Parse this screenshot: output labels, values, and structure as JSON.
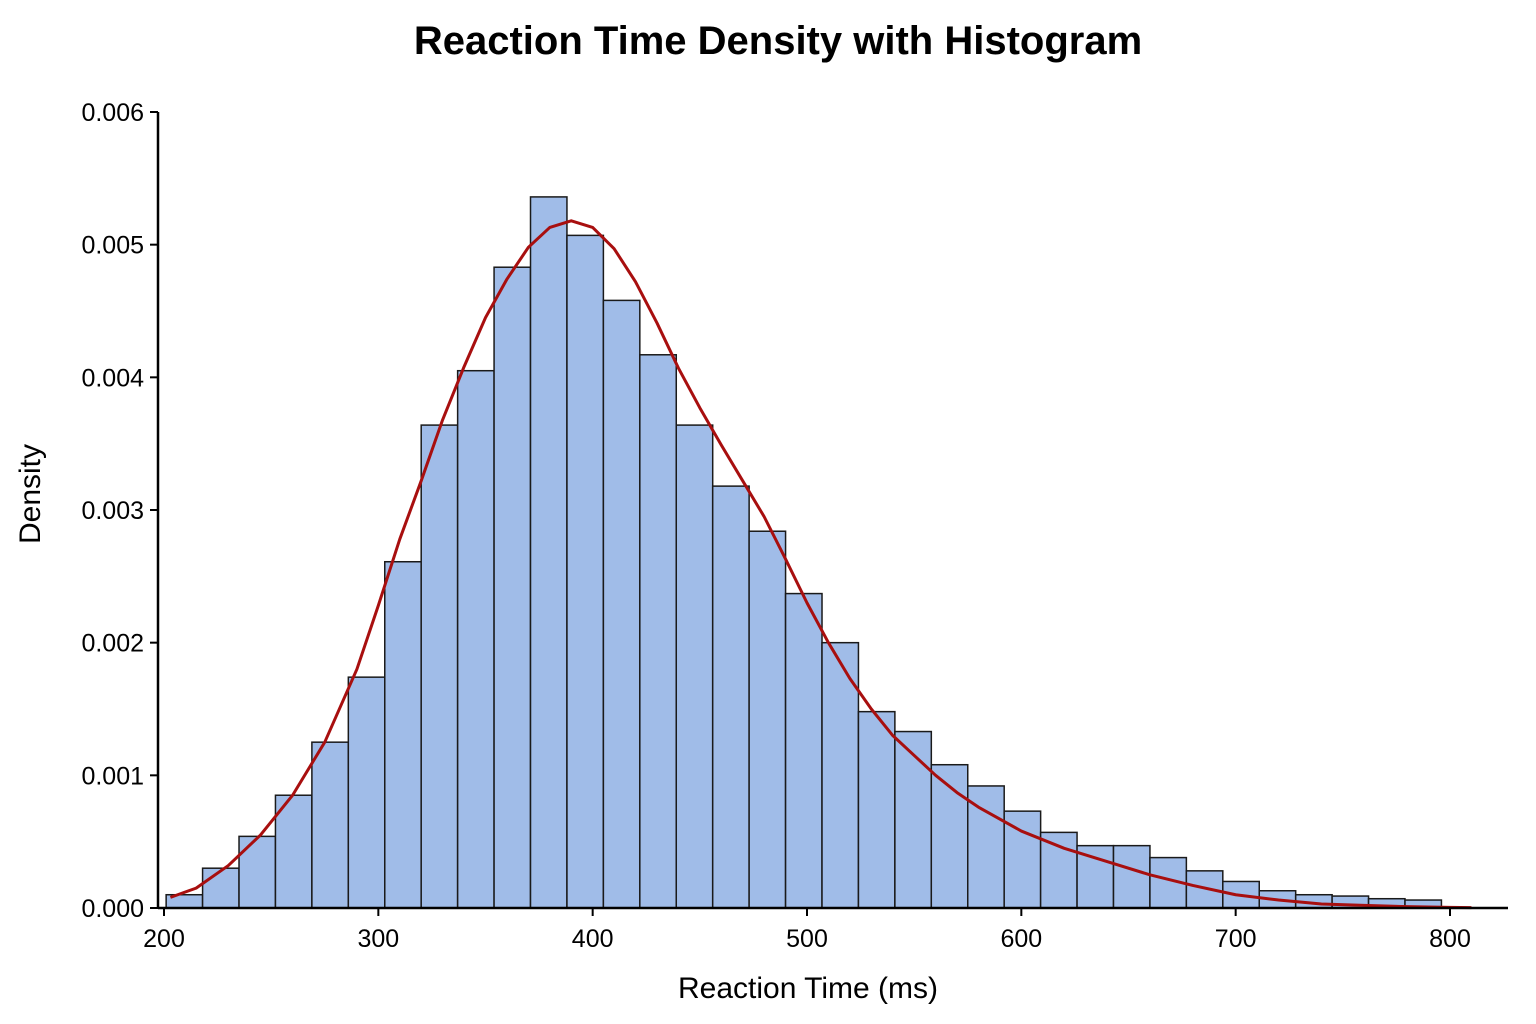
{
  "chart_data": {
    "type": "histogram",
    "title": "Reaction Time Density with Histogram",
    "xlabel": "Reaction Time (ms)",
    "ylabel": "Density",
    "xlim": [
      200,
      810
    ],
    "ylim": [
      0,
      0.006
    ],
    "xticks": [
      200,
      300,
      400,
      500,
      600,
      700,
      800
    ],
    "yticks": [
      0.0,
      0.001,
      0.002,
      0.003,
      0.004,
      0.005,
      0.006
    ],
    "ytick_labels": [
      "0.000",
      "0.001",
      "0.002",
      "0.003",
      "0.004",
      "0.005",
      "0.006"
    ],
    "grid": false,
    "legend": false,
    "colors": {
      "bar_fill": "#a0bce8",
      "bar_edge": "#1a1a1a",
      "density_line": "#a80f0f"
    },
    "histogram": {
      "bin_width": 17,
      "bin_edges": [
        201,
        218,
        235,
        252,
        269,
        286,
        303,
        320,
        337,
        354,
        371,
        388,
        405,
        422,
        439,
        456,
        473,
        490,
        507,
        524,
        541,
        558,
        575,
        592,
        609,
        626,
        643,
        660,
        677,
        694,
        711,
        728,
        745,
        762,
        779,
        796
      ],
      "densities": [
        0.0001,
        0.0003,
        0.00054,
        0.00085,
        0.00125,
        0.00174,
        0.00261,
        0.00364,
        0.00405,
        0.00483,
        0.00536,
        0.00507,
        0.00458,
        0.00417,
        0.00364,
        0.00318,
        0.00284,
        0.00237,
        0.002,
        0.00148,
        0.00133,
        0.00108,
        0.00092,
        0.00073,
        0.00057,
        0.00047,
        0.00047,
        0.00038,
        0.00028,
        0.0002,
        0.00013,
        0.0001,
        9e-05,
        7e-05,
        6e-05
      ]
    },
    "density_curve": {
      "name": "",
      "x": [
        203,
        215,
        230,
        245,
        260,
        275,
        290,
        300,
        310,
        320,
        330,
        340,
        350,
        360,
        370,
        380,
        390,
        400,
        410,
        420,
        430,
        440,
        450,
        460,
        470,
        480,
        490,
        500,
        510,
        520,
        530,
        540,
        550,
        560,
        570,
        580,
        600,
        620,
        640,
        660,
        680,
        700,
        720,
        740,
        760,
        780,
        800,
        810
      ],
      "y": [
        8e-05,
        0.00015,
        0.00032,
        0.00055,
        0.00085,
        0.00125,
        0.0018,
        0.00228,
        0.00278,
        0.00322,
        0.00368,
        0.00408,
        0.00445,
        0.00474,
        0.00498,
        0.00513,
        0.00518,
        0.00513,
        0.00497,
        0.00472,
        0.00441,
        0.00407,
        0.00377,
        0.00349,
        0.00322,
        0.00295,
        0.00263,
        0.0023,
        0.002,
        0.00173,
        0.0015,
        0.0013,
        0.00115,
        0.001,
        0.00087,
        0.00076,
        0.00058,
        0.00045,
        0.00035,
        0.00025,
        0.00017,
        0.0001,
        6e-05,
        3e-05,
        2e-05,
        1e-05,
        5e-06,
        3e-06
      ]
    }
  }
}
